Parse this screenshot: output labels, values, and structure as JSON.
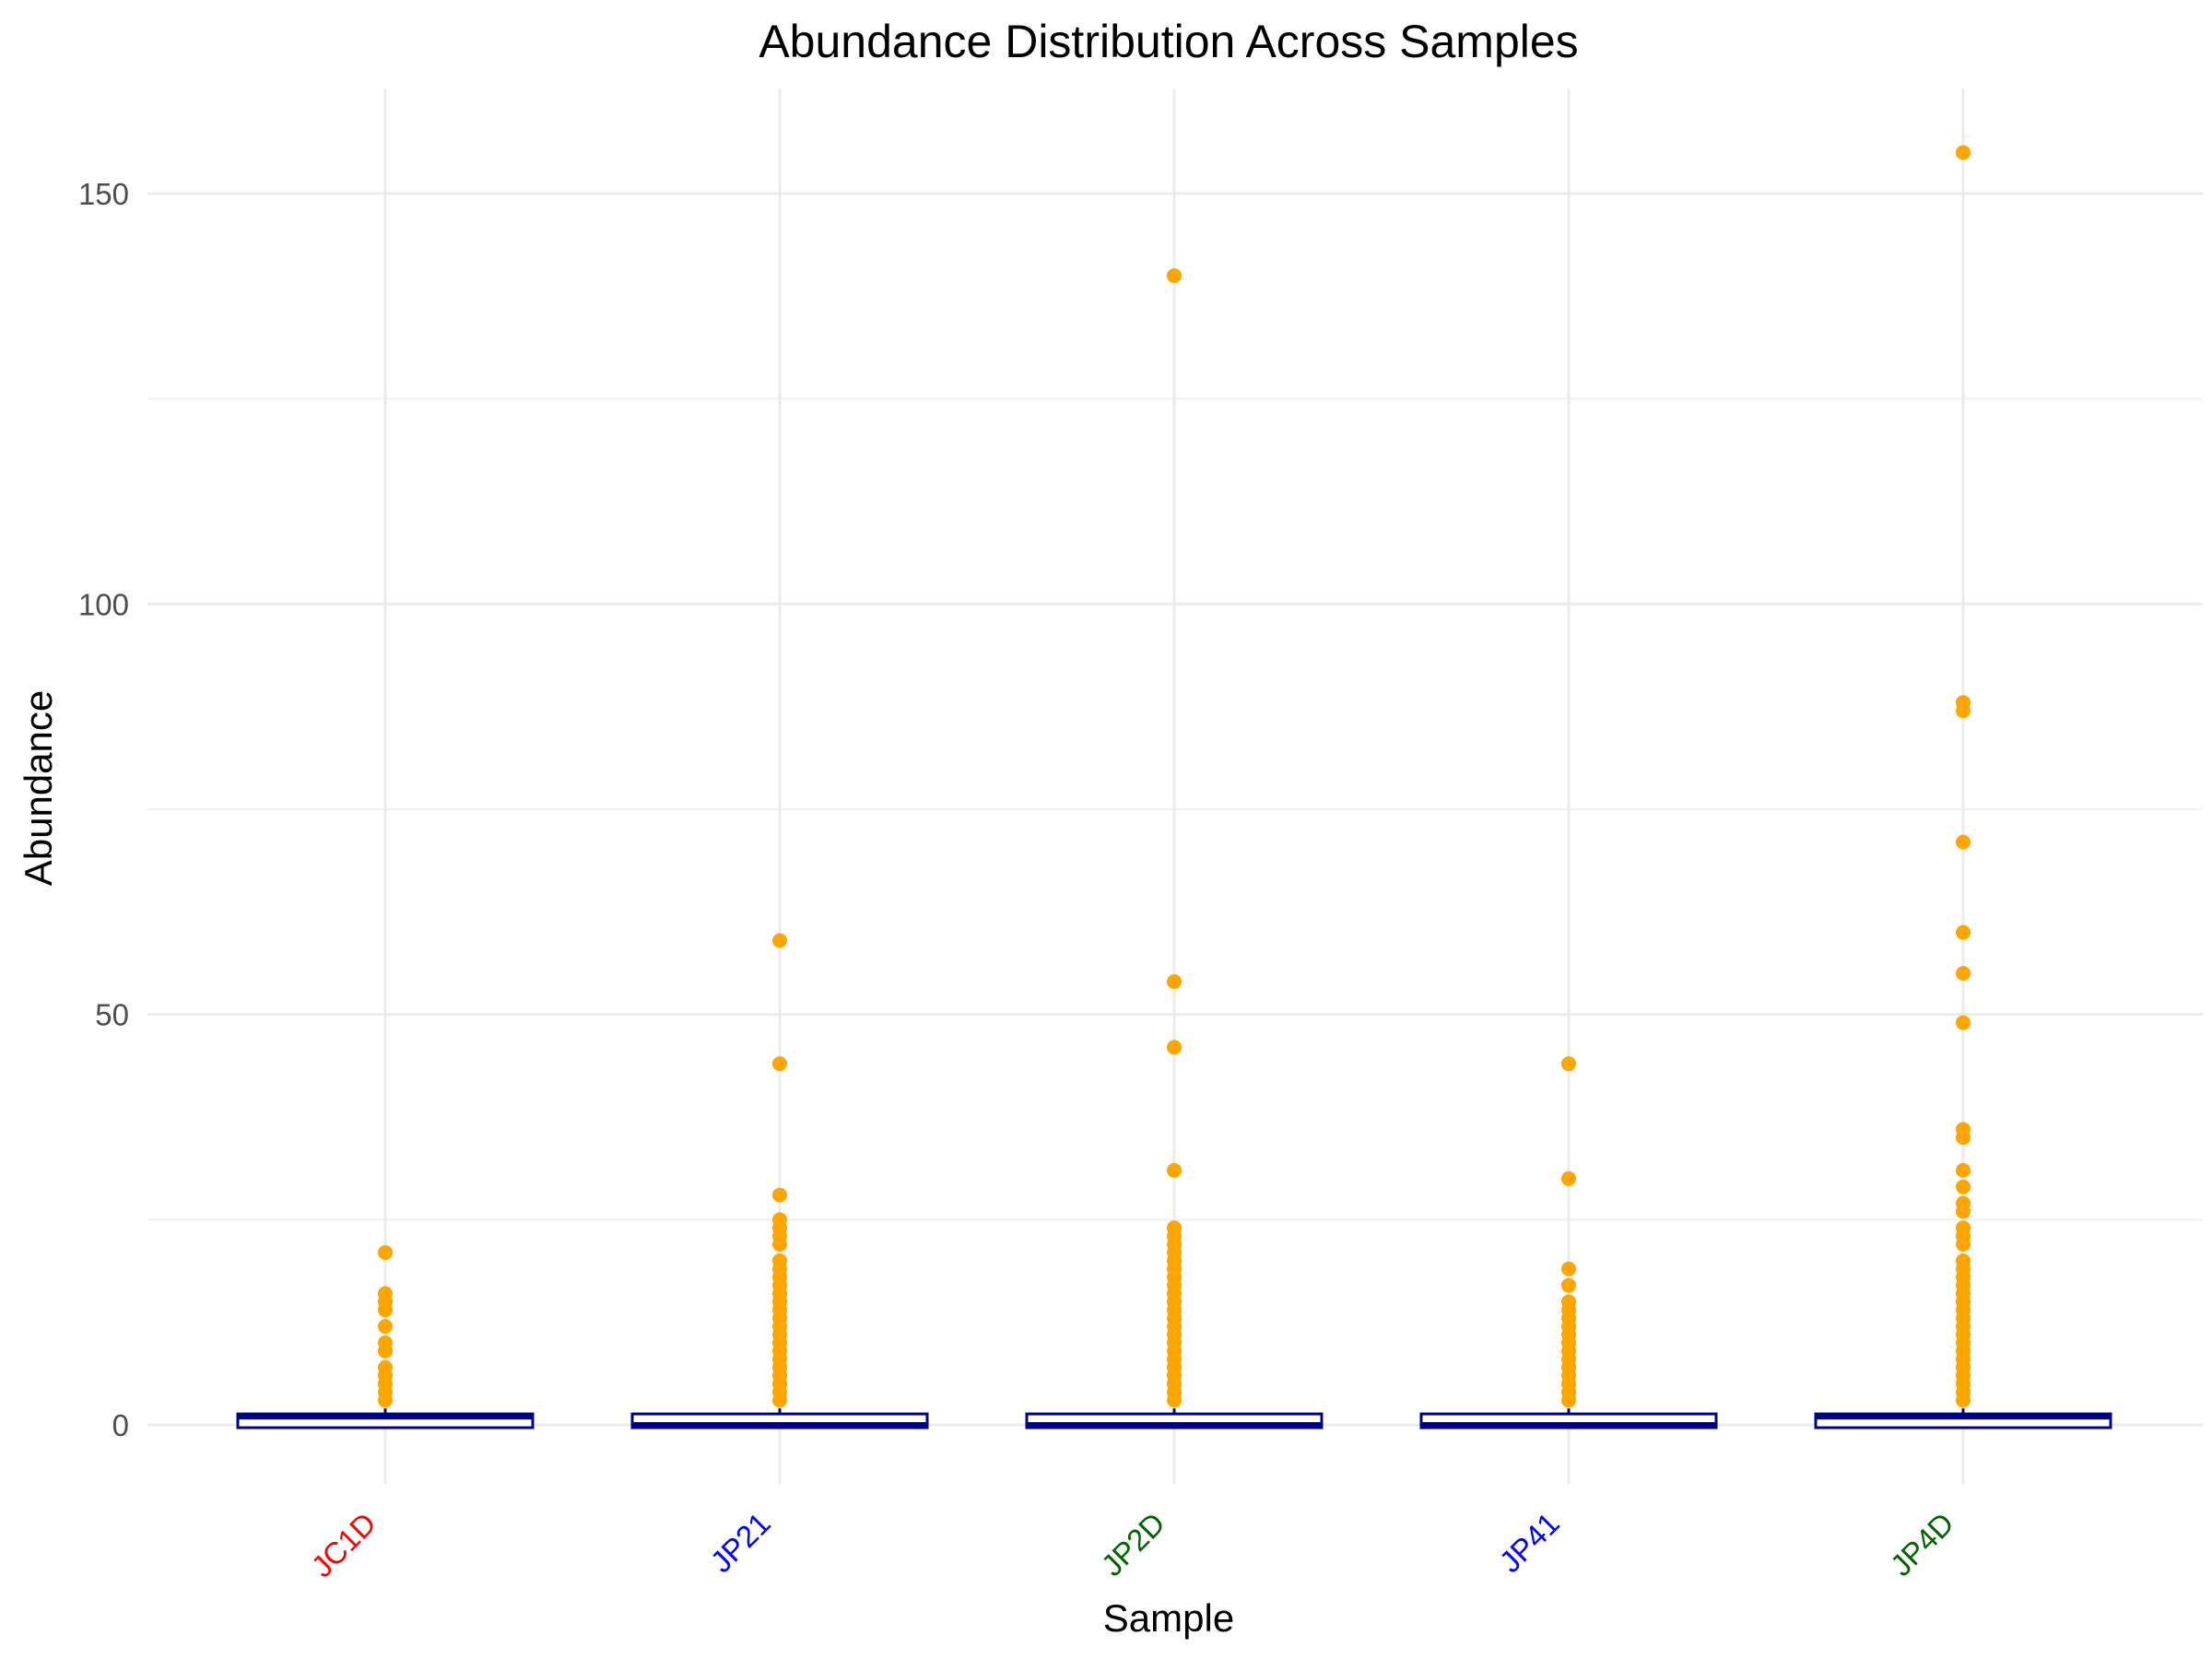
{
  "chart_data": {
    "type": "boxplot",
    "title": "Abundance Distribution Across Samples",
    "xlabel": "Sample",
    "ylabel": "Abundance",
    "ylim": [
      -10,
      163
    ],
    "y_ticks": [
      0,
      50,
      100,
      150
    ],
    "grid": true,
    "categories": [
      "JC1D",
      "JP21",
      "JP2D",
      "JP41",
      "JP4D"
    ],
    "category_label_colors": [
      "#ff0000",
      "#0000ff",
      "#006400",
      "#0000ff",
      "#006400"
    ],
    "box_fill": "#ffffff",
    "box_outline": "#00008b",
    "outlier_color": "#ffa500",
    "series": [
      {
        "box": {
          "min": 0,
          "q1": 0,
          "median": 1,
          "q3": 1,
          "max": 2
        },
        "outliers": [
          3,
          4,
          5,
          6,
          7,
          9,
          10,
          12,
          14,
          15,
          16,
          21
        ]
      },
      {
        "box": {
          "min": 0,
          "q1": 0,
          "median": 0,
          "q3": 1,
          "max": 2
        },
        "outliers": [
          3,
          4,
          5,
          6,
          7,
          8,
          9,
          10,
          11,
          12,
          13,
          14,
          15,
          16,
          17,
          18,
          19,
          20,
          22,
          23,
          24,
          25,
          28,
          44,
          59
        ]
      },
      {
        "box": {
          "min": 0,
          "q1": 0,
          "median": 0,
          "q3": 1,
          "max": 2
        },
        "outliers": [
          3,
          4,
          5,
          6,
          7,
          8,
          9,
          10,
          11,
          12,
          13,
          14,
          15,
          16,
          17,
          18,
          19,
          20,
          21,
          22,
          23,
          24,
          31,
          46,
          54,
          140
        ]
      },
      {
        "box": {
          "min": 0,
          "q1": 0,
          "median": 0,
          "q3": 1,
          "max": 2
        },
        "outliers": [
          3,
          4,
          5,
          6,
          7,
          8,
          9,
          10,
          11,
          12,
          13,
          14,
          15,
          17,
          19,
          30,
          44
        ]
      },
      {
        "box": {
          "min": 0,
          "q1": 0,
          "median": 1,
          "q3": 1,
          "max": 2
        },
        "outliers": [
          3,
          4,
          5,
          6,
          7,
          8,
          9,
          10,
          11,
          12,
          13,
          14,
          15,
          16,
          17,
          18,
          19,
          20,
          22,
          23,
          24,
          26,
          27,
          29,
          31,
          35,
          36,
          49,
          55,
          60,
          71,
          87,
          88,
          155
        ]
      }
    ]
  }
}
